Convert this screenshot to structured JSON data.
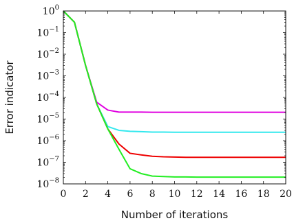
{
  "chart_data": {
    "type": "line",
    "title": "",
    "xlabel": "Number of iterations",
    "ylabel": "Error indicator",
    "xlim": [
      0,
      20
    ],
    "ylim_log10": [
      -8,
      0
    ],
    "yscale": "log",
    "grid": false,
    "x_ticks": [
      0,
      2,
      4,
      6,
      8,
      10,
      12,
      14,
      16,
      18,
      20
    ],
    "x_tick_labels": [
      "0",
      "2",
      "4",
      "6",
      "8",
      "10",
      "12",
      "14",
      "16",
      "18",
      "20"
    ],
    "y_tick_exponents": [
      0,
      -1,
      -2,
      -3,
      -4,
      -5,
      -6,
      -7,
      -8
    ],
    "y_tick_base": "10",
    "x": [
      0,
      1,
      2,
      3,
      4,
      5,
      6,
      7,
      8,
      9,
      10,
      11,
      12,
      13,
      14,
      15,
      16,
      17,
      18,
      19,
      20
    ],
    "series": [
      {
        "color": "#e000e0",
        "values": [
          1,
          0.3,
          0.003,
          6e-05,
          2.6e-05,
          2.1e-05,
          2.1e-05,
          2.1e-05,
          2.05e-05,
          2.05e-05,
          2.05e-05,
          2.05e-05,
          2.05e-05,
          2.05e-05,
          2.05e-05,
          2.05e-05,
          2.05e-05,
          2.05e-05,
          2.05e-05,
          2.05e-05,
          2.05e-05
        ]
      },
      {
        "color": "#33e8ee",
        "values": [
          1,
          0.3,
          0.003,
          5e-05,
          4.5e-06,
          3e-06,
          2.7e-06,
          2.6e-06,
          2.5e-06,
          2.5e-06,
          2.45e-06,
          2.45e-06,
          2.45e-06,
          2.45e-06,
          2.45e-06,
          2.45e-06,
          2.45e-06,
          2.45e-06,
          2.45e-06,
          2.45e-06,
          2.45e-06
        ]
      },
      {
        "color": "#ee0000",
        "values": [
          1,
          0.3,
          0.003,
          5e-05,
          3.5e-06,
          7e-07,
          2.6e-07,
          2.2e-07,
          1.9e-07,
          1.8e-07,
          1.75e-07,
          1.7e-07,
          1.7e-07,
          1.7e-07,
          1.7e-07,
          1.7e-07,
          1.7e-07,
          1.7e-07,
          1.7e-07,
          1.7e-07,
          1.7e-07
        ]
      },
      {
        "color": "#22ee22",
        "values": [
          1,
          0.3,
          0.003,
          5e-05,
          3.5e-06,
          4e-07,
          5e-08,
          3e-08,
          2.3e-08,
          2.2e-08,
          2.1e-08,
          2.1e-08,
          2.05e-08,
          2.05e-08,
          2.05e-08,
          2.05e-08,
          2.05e-08,
          2.05e-08,
          2.05e-08,
          2.05e-08,
          2.05e-08
        ]
      }
    ]
  }
}
